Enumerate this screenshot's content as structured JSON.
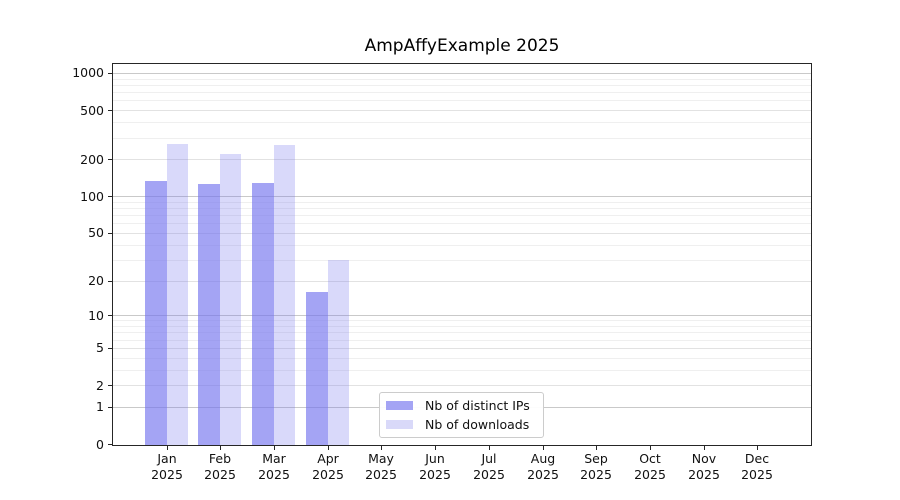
{
  "chart_data": {
    "type": "bar",
    "title": "AmpAffyExample 2025",
    "year": "2025",
    "categories": [
      "Jan",
      "Feb",
      "Mar",
      "Apr",
      "May",
      "Jun",
      "Jul",
      "Aug",
      "Sep",
      "Oct",
      "Nov",
      "Dec"
    ],
    "series": [
      {
        "name": "Nb of distinct IPs",
        "values": [
          133,
          125,
          127,
          16,
          null,
          null,
          null,
          null,
          null,
          null,
          null,
          null
        ],
        "fill": "rgba(115,115,238,0.65)",
        "swatch": "#a4a4f4"
      },
      {
        "name": "Nb of downloads",
        "values": [
          266,
          220,
          262,
          30,
          null,
          null,
          null,
          null,
          null,
          null,
          null,
          null
        ],
        "fill": "rgba(115,115,238,0.27)",
        "swatch": "#d9d9f9"
      }
    ],
    "xlabel": "",
    "ylabel": "",
    "y_axis": {
      "scale": "log1p",
      "tick_labels": [
        0,
        1,
        2,
        5,
        10,
        20,
        50,
        100,
        200,
        500,
        1000
      ],
      "major_gridlines": [
        1,
        10,
        100,
        1000
      ],
      "mid_gridlines": [
        2,
        5,
        20,
        50,
        200,
        500
      ],
      "minor_gridlines": [
        3,
        4,
        6,
        7,
        8,
        9,
        30,
        40,
        60,
        70,
        80,
        90,
        300,
        400,
        600,
        700,
        800,
        900
      ],
      "ylim": [
        0,
        1200
      ]
    },
    "grid": true,
    "legend_position": "inside-bottom-center"
  },
  "colors": {
    "grid_major": "#c9c9c9",
    "grid_mid": "#e2e2e2",
    "grid_minor": "#efefef",
    "spine": "#262626",
    "text": "#111111"
  }
}
